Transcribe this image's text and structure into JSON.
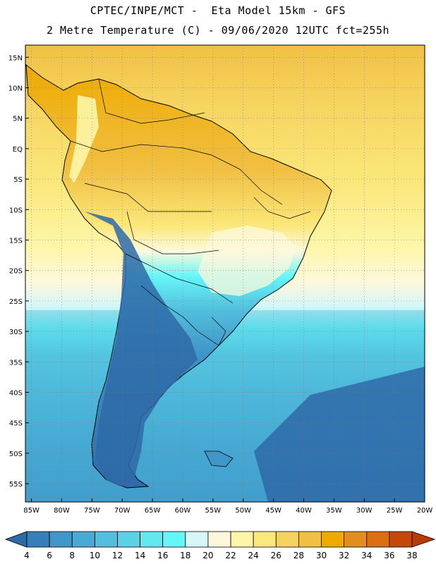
{
  "header": {
    "line1": "CPTEC/INPE/MCT -  Eta Model 15km - GFS",
    "line2": "2 Metre Temperature (C) - 09/06/2020 12UTC fct=255h"
  },
  "map": {
    "lon_range": [
      -86,
      -20
    ],
    "lat_range": [
      17,
      -58
    ],
    "lat_labels": [
      "15N",
      "10N",
      "5N",
      "EQ",
      "5S",
      "10S",
      "15S",
      "20S",
      "25S",
      "30S",
      "35S",
      "40S",
      "45S",
      "50S",
      "55S"
    ],
    "lat_values": [
      15,
      10,
      5,
      0,
      -5,
      -10,
      -15,
      -20,
      -25,
      -30,
      -35,
      -40,
      -45,
      -50,
      -55
    ],
    "lon_labels": [
      "85W",
      "80W",
      "75W",
      "70W",
      "65W",
      "60W",
      "55W",
      "50W",
      "45W",
      "40W",
      "35W",
      "30W",
      "25W",
      "20W"
    ],
    "lon_values": [
      -85,
      -80,
      -75,
      -70,
      -65,
      -60,
      -55,
      -50,
      -45,
      -40,
      -35,
      -30,
      -25,
      -20
    ]
  },
  "colorbar": {
    "labels": [
      "4",
      "6",
      "8",
      "10",
      "12",
      "14",
      "16",
      "18",
      "20",
      "22",
      "24",
      "26",
      "28",
      "30",
      "32",
      "34",
      "36",
      "38"
    ],
    "colors": [
      "#2e6aa8",
      "#3580bb",
      "#3f96c8",
      "#48abd5",
      "#52bfde",
      "#5ad2e6",
      "#62e8ef",
      "#66f6f8",
      "#d6f6f8",
      "#fdf8dc",
      "#fdf6a8",
      "#fbe87a",
      "#f6d35e",
      "#f1c043",
      "#eeaa00",
      "#e48d1e",
      "#db6f12",
      "#c64808",
      "#b83a05"
    ]
  }
}
